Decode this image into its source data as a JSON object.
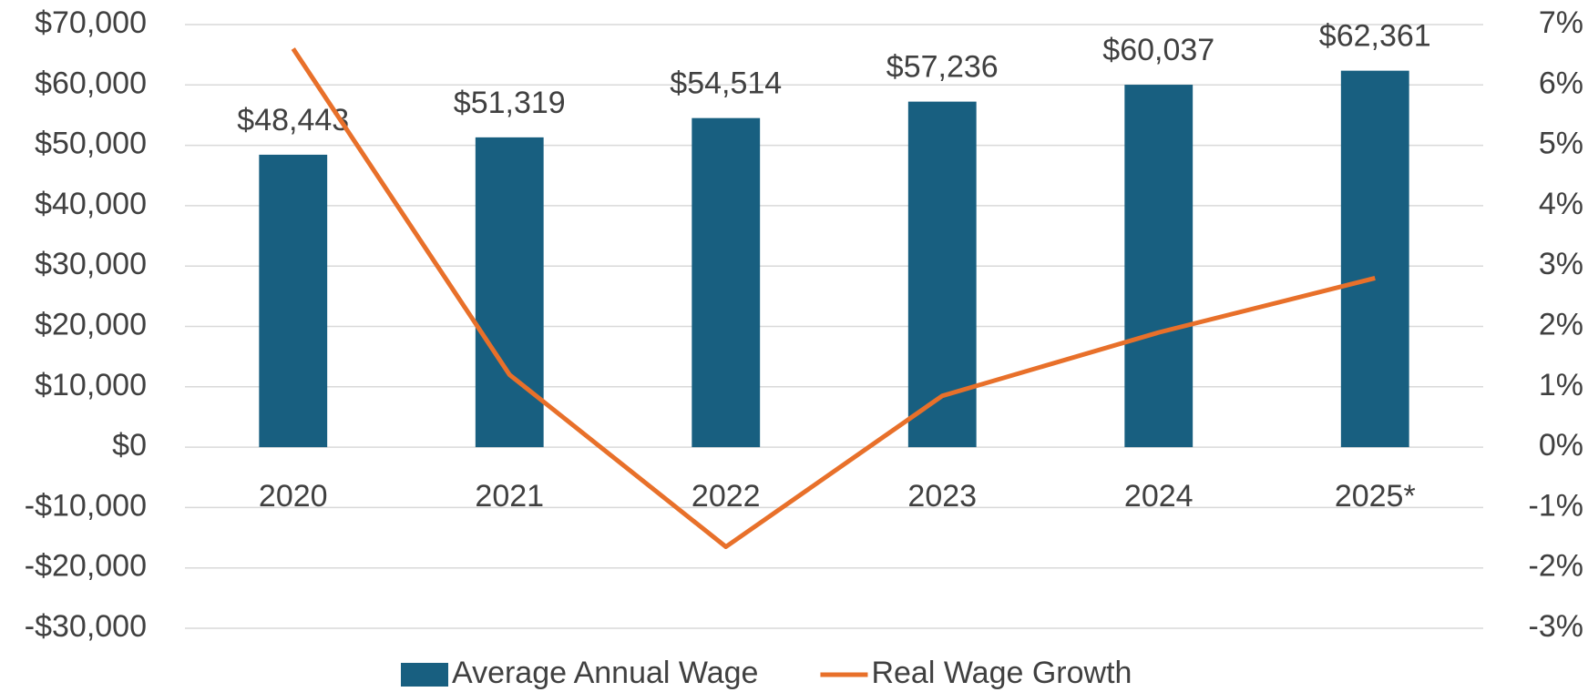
{
  "chart_data": {
    "type": "bar-line",
    "categories": [
      "2020",
      "2021",
      "2022",
      "2023",
      "2024",
      "2025*"
    ],
    "series": [
      {
        "name": "Average Annual Wage",
        "type": "bar",
        "color": "#185f80",
        "values": [
          48443,
          51319,
          54514,
          57236,
          60037,
          62361
        ],
        "value_labels": [
          "$48,443",
          "$51,319",
          "$54,514",
          "$57,236",
          "$60,037",
          "$62,361"
        ]
      },
      {
        "name": "Real Wage Growth",
        "type": "line",
        "axis": "y2",
        "color": "#e8702a",
        "values": [
          6.6,
          1.2,
          -1.65,
          0.85,
          1.9,
          2.8
        ]
      }
    ],
    "ylim": [
      -30000,
      70000
    ],
    "yticks": [
      {
        "value": -30000,
        "label": "-$30,000"
      },
      {
        "value": -20000,
        "label": "-$20,000"
      },
      {
        "value": -10000,
        "label": "-$10,000"
      },
      {
        "value": 0,
        "label": "$0"
      },
      {
        "value": 10000,
        "label": "$10,000"
      },
      {
        "value": 20000,
        "label": "$20,000"
      },
      {
        "value": 30000,
        "label": "$30,000"
      },
      {
        "value": 40000,
        "label": "$40,000"
      },
      {
        "value": 50000,
        "label": "$50,000"
      },
      {
        "value": 60000,
        "label": "$60,000"
      },
      {
        "value": 70000,
        "label": "$70,000"
      }
    ],
    "y2lim": [
      -3,
      7
    ],
    "y2ticks": [
      {
        "value": -3,
        "label": "-3%"
      },
      {
        "value": -2,
        "label": "-2%"
      },
      {
        "value": -1,
        "label": "-1%"
      },
      {
        "value": 0,
        "label": "0%"
      },
      {
        "value": 1,
        "label": "1%"
      },
      {
        "value": 2,
        "label": "2%"
      },
      {
        "value": 3,
        "label": "3%"
      },
      {
        "value": 4,
        "label": "4%"
      },
      {
        "value": 5,
        "label": "5%"
      },
      {
        "value": 6,
        "label": "6%"
      },
      {
        "value": 7,
        "label": "7%"
      }
    ],
    "grid": true,
    "legend": "bottom"
  }
}
